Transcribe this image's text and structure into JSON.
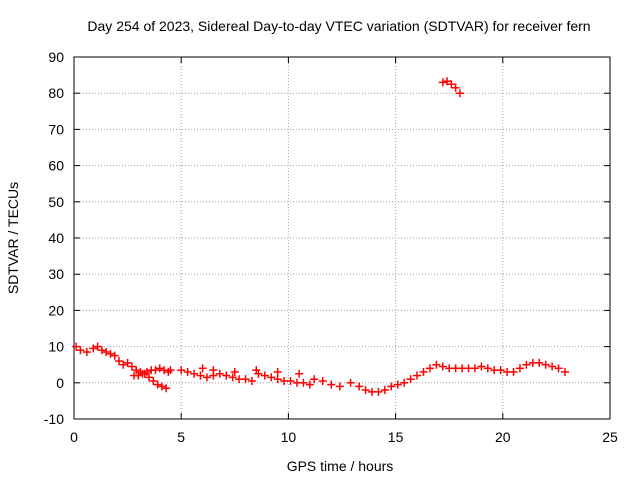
{
  "chart_data": {
    "type": "scatter",
    "title": "Day 254 of 2023, Sidereal Day-to-day VTEC variation (SDTVAR) for receiver fern",
    "xlabel": "GPS time / hours",
    "ylabel": "SDTVAR / TECUs",
    "xlim": [
      0,
      25
    ],
    "ylim": [
      -10,
      90
    ],
    "xticks": [
      0,
      5,
      10,
      15,
      20,
      25
    ],
    "yticks": [
      -10,
      0,
      10,
      20,
      30,
      40,
      50,
      60,
      70,
      80,
      90
    ],
    "xtick_labels": [
      "0",
      "5",
      "10",
      "15",
      "20",
      "25"
    ],
    "ytick_labels": [
      "-10",
      "0",
      "10",
      "20",
      "30",
      "40",
      "50",
      "60",
      "70",
      "80",
      "90"
    ],
    "grid": true,
    "marker": "+",
    "color": "#ff0000",
    "series": [
      {
        "name": "SDTVAR",
        "x": [
          0.1,
          0.3,
          0.6,
          0.9,
          1.1,
          1.3,
          1.5,
          1.7,
          1.9,
          2.1,
          2.3,
          2.5,
          2.7,
          2.9,
          3.1,
          3.3,
          3.5,
          3.7,
          3.9,
          4.1,
          4.3,
          4.5,
          2.8,
          3.0,
          3.2,
          3.4,
          3.6,
          3.8,
          4.0,
          4.2,
          4.4,
          5.0,
          5.3,
          5.6,
          5.9,
          6.2,
          6.5,
          6.8,
          7.1,
          7.4,
          7.7,
          8.0,
          8.3,
          8.6,
          8.9,
          9.2,
          9.5,
          9.8,
          10.1,
          10.4,
          10.7,
          11.0,
          11.2,
          11.6,
          12.0,
          12.4,
          12.9,
          13.3,
          13.6,
          13.9,
          14.2,
          14.5,
          14.8,
          15.1,
          15.4,
          15.7,
          16.0,
          16.3,
          16.6,
          16.9,
          17.2,
          17.5,
          17.8,
          18.1,
          18.4,
          18.7,
          19.0,
          19.3,
          19.6,
          19.9,
          20.2,
          20.5,
          20.8,
          21.1,
          21.4,
          21.7,
          22.0,
          22.3,
          22.6,
          22.9,
          6.0,
          6.5,
          7.5,
          8.5,
          9.5,
          10.5,
          17.2,
          17.4,
          17.6,
          17.8,
          18.0
        ],
        "y": [
          10,
          9,
          8.5,
          9.5,
          10,
          9,
          8.5,
          8,
          7.5,
          6,
          5,
          5.5,
          4.5,
          3.5,
          3,
          2.5,
          1.5,
          0.5,
          -0.5,
          -1,
          -1.5,
          3.5,
          2,
          2,
          2.5,
          3,
          3.5,
          3.5,
          4,
          3.5,
          3,
          3.5,
          3,
          2.5,
          2,
          1.5,
          2,
          2.5,
          2,
          1.5,
          1,
          1,
          0.5,
          2.5,
          2,
          1.5,
          1,
          0.5,
          0.5,
          0,
          0,
          -0.5,
          1,
          0.5,
          -0.5,
          -1,
          0,
          -1,
          -2,
          -2.5,
          -2.5,
          -2,
          -1,
          -0.5,
          0,
          1,
          2,
          3,
          4,
          5,
          4.5,
          4,
          4,
          4,
          4,
          4,
          4.5,
          4,
          3.5,
          3.5,
          3,
          3,
          4,
          5,
          5.5,
          5.5,
          5,
          4.5,
          4,
          3,
          4,
          3.5,
          3,
          3.5,
          3,
          2.5,
          83,
          83.3,
          82.5,
          81.5,
          80
        ]
      }
    ]
  }
}
